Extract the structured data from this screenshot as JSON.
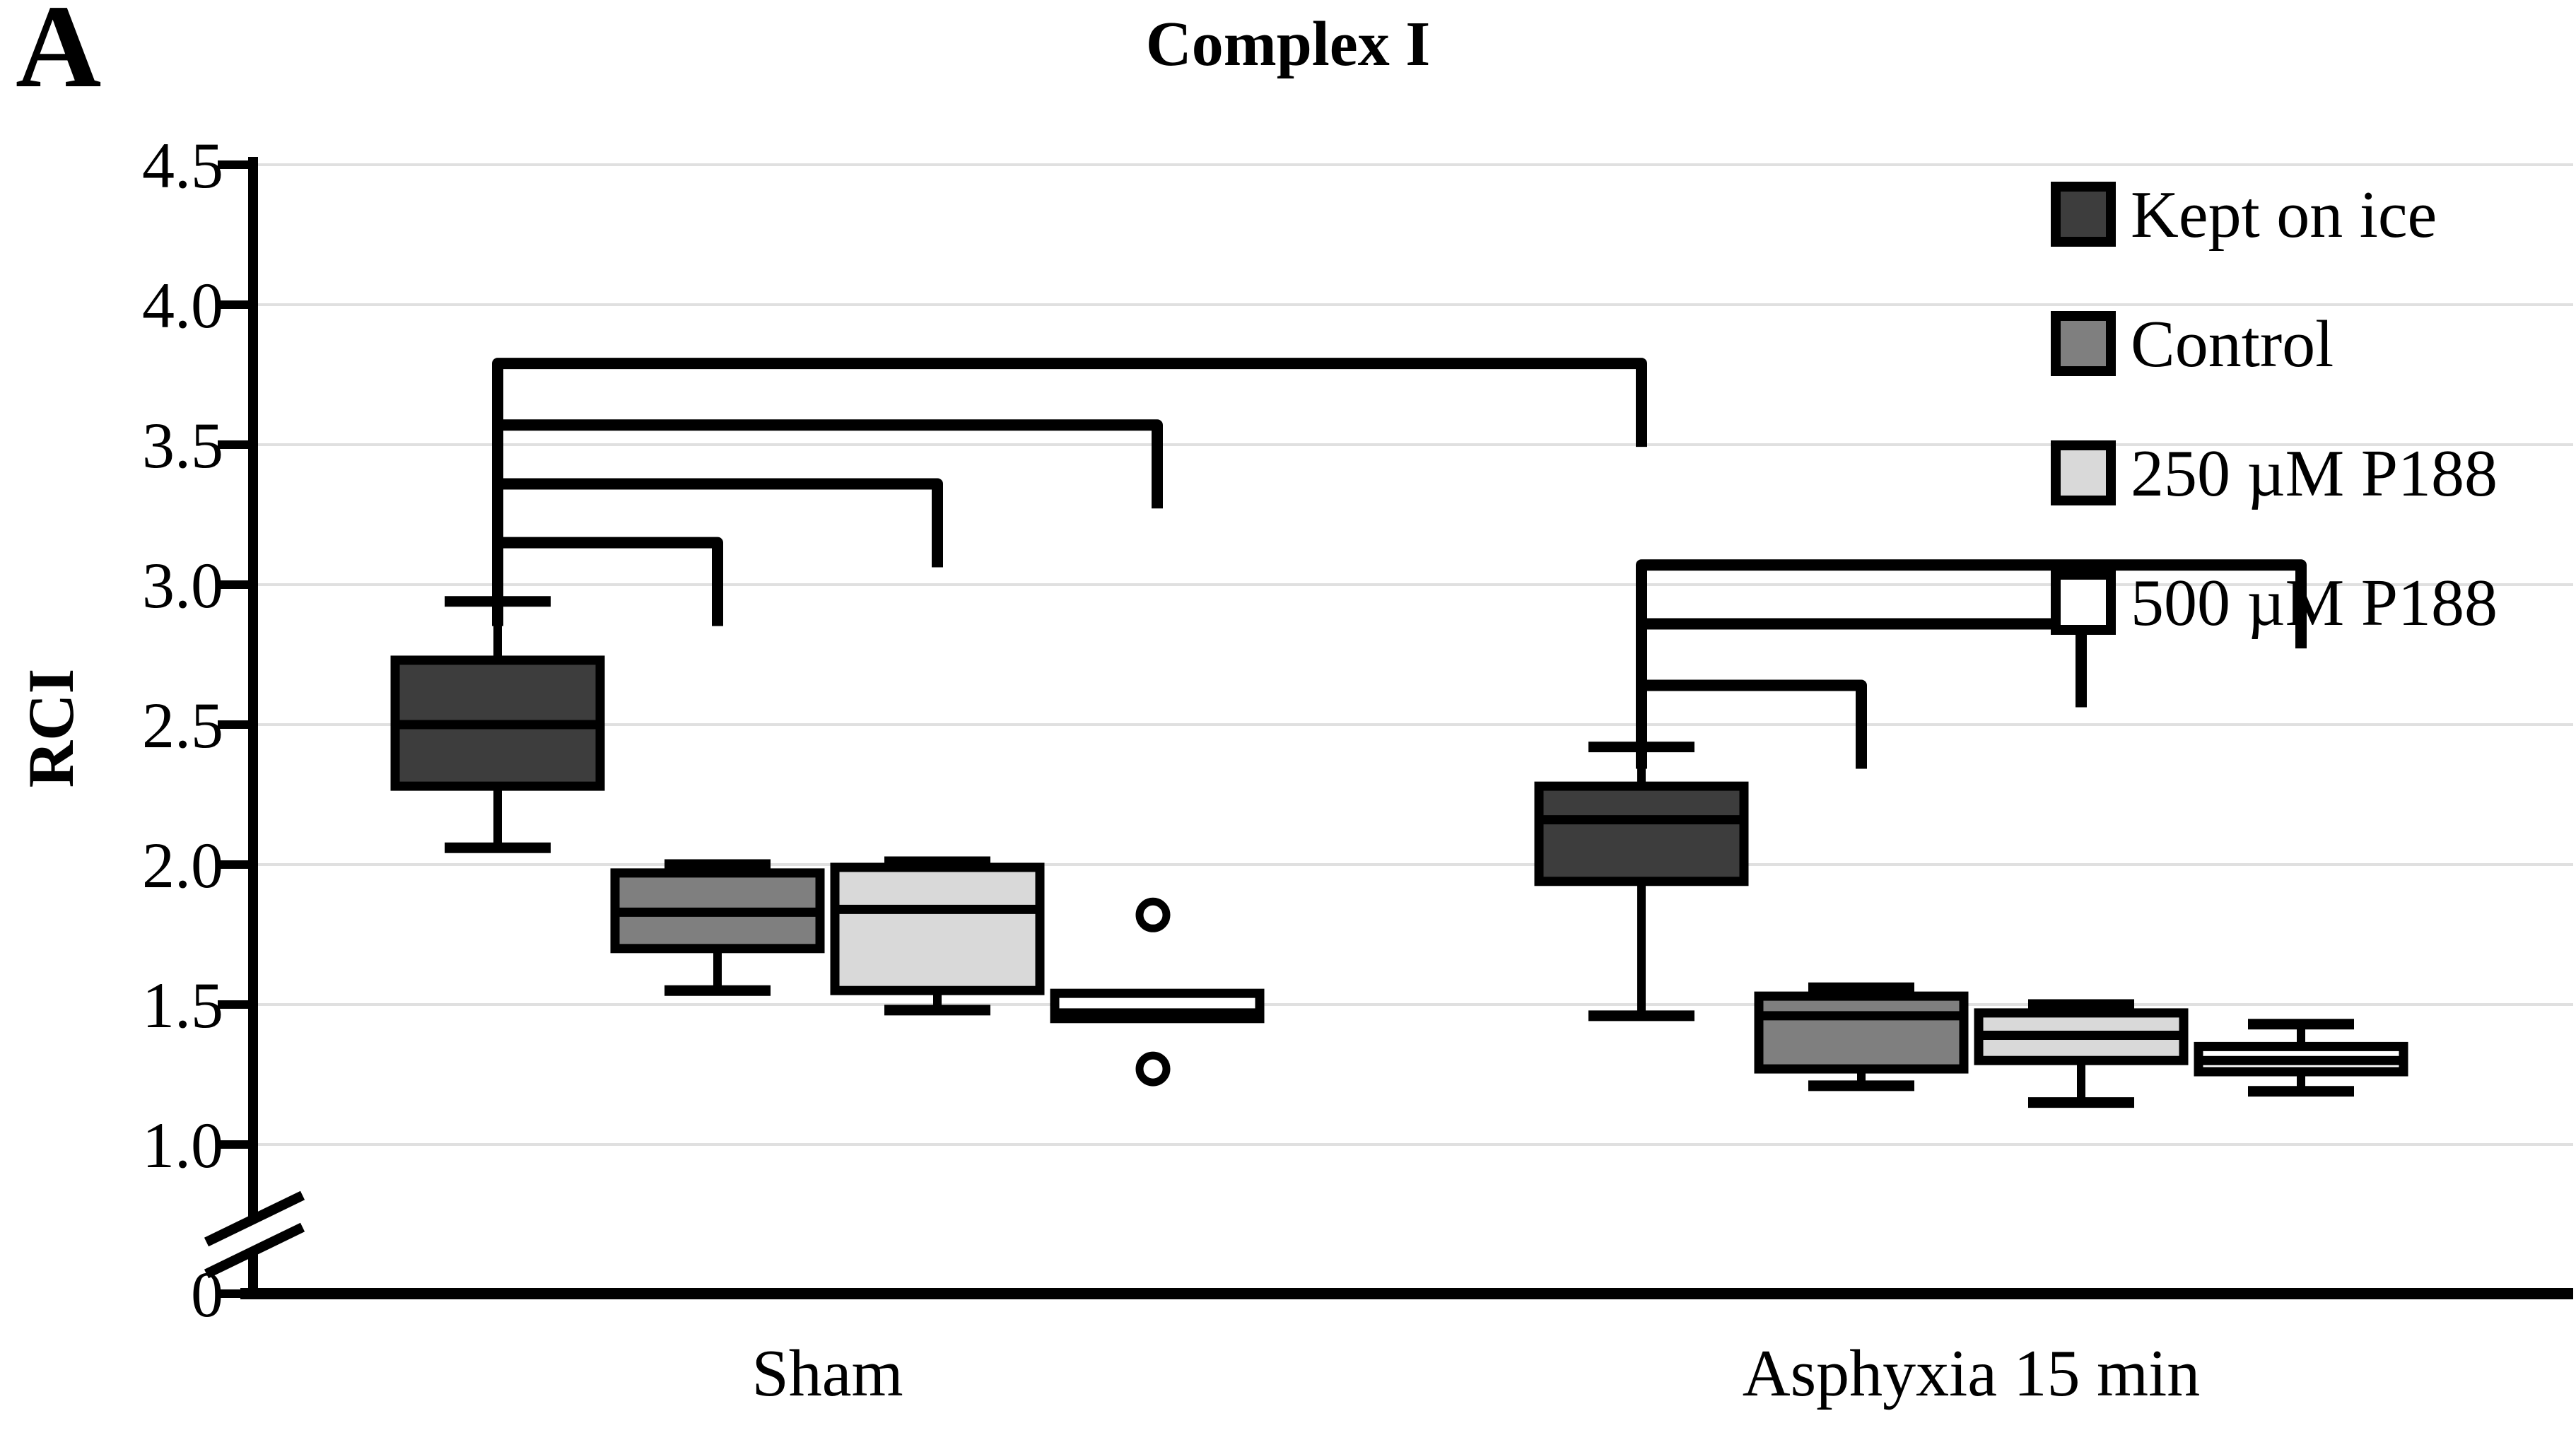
{
  "chart_data": {
    "type": "boxplot",
    "panel_label": "A",
    "title": "Complex I",
    "ylabel": "RCI",
    "groups": [
      "Sham",
      "Asphyxia 15 min"
    ],
    "series": [
      "Kept on ice",
      "Control",
      "250 µM P188",
      "500 µM P188"
    ],
    "y_axis": {
      "ticks": [
        4.5,
        4.0,
        3.5,
        3.0,
        2.5,
        2.0,
        1.5,
        1.0
      ],
      "zero_tick_label": "0",
      "axis_break_between": [
        0,
        1.0
      ],
      "grid": true
    },
    "boxes": [
      {
        "group": "Sham",
        "series": "Kept on ice",
        "whisker_low": 2.06,
        "q1": 2.28,
        "median": 2.5,
        "q3": 2.73,
        "whisker_high": 2.94,
        "outliers": []
      },
      {
        "group": "Sham",
        "series": "Control",
        "whisker_low": 1.55,
        "q1": 1.7,
        "median": 1.83,
        "q3": 1.97,
        "whisker_high": 2.0,
        "outliers": []
      },
      {
        "group": "Sham",
        "series": "250 µM P188",
        "whisker_low": 1.48,
        "q1": 1.55,
        "median": 1.84,
        "q3": 1.99,
        "whisker_high": 2.01,
        "outliers": []
      },
      {
        "group": "Sham",
        "series": "500 µM P188",
        "whisker_low": null,
        "q1": 1.45,
        "median": 1.47,
        "q3": 1.54,
        "whisker_high": null,
        "outliers": [
          1.82,
          1.27
        ]
      },
      {
        "group": "Asphyxia 15 min",
        "series": "Kept on ice",
        "whisker_low": 1.46,
        "q1": 1.94,
        "median": 2.16,
        "q3": 2.28,
        "whisker_high": 2.42,
        "outliers": []
      },
      {
        "group": "Asphyxia 15 min",
        "series": "Control",
        "whisker_low": 1.21,
        "q1": 1.27,
        "median": 1.46,
        "q3": 1.53,
        "whisker_high": 1.56,
        "outliers": []
      },
      {
        "group": "Asphyxia 15 min",
        "series": "250 µM P188",
        "whisker_low": 1.15,
        "q1": 1.3,
        "median": 1.39,
        "q3": 1.47,
        "whisker_high": 1.5,
        "outliers": []
      },
      {
        "group": "Asphyxia 15 min",
        "series": "500 µM P188",
        "whisker_low": 1.19,
        "q1": 1.26,
        "median": 1.3,
        "q3": 1.35,
        "whisker_high": 1.43,
        "outliers": []
      }
    ],
    "significance_brackets": [
      {
        "from": {
          "group": "Sham",
          "series": "Kept on ice"
        },
        "to": {
          "group": "Sham",
          "series": "Control"
        },
        "height": 3.15
      },
      {
        "from": {
          "group": "Sham",
          "series": "Kept on ice"
        },
        "to": {
          "group": "Sham",
          "series": "250 µM P188"
        },
        "height": 3.36
      },
      {
        "from": {
          "group": "Sham",
          "series": "Kept on ice"
        },
        "to": {
          "group": "Sham",
          "series": "500 µM P188"
        },
        "height": 3.57
      },
      {
        "from": {
          "group": "Sham",
          "series": "Kept on ice"
        },
        "to": {
          "group": "Asphyxia 15 min",
          "series": "Kept on ice"
        },
        "height": 3.79
      },
      {
        "from": {
          "group": "Asphyxia 15 min",
          "series": "Kept on ice"
        },
        "to": {
          "group": "Asphyxia 15 min",
          "series": "Control"
        },
        "height": 2.64
      },
      {
        "from": {
          "group": "Asphyxia 15 min",
          "series": "Kept on ice"
        },
        "to": {
          "group": "Asphyxia 15 min",
          "series": "250 µM P188"
        },
        "height": 2.86
      },
      {
        "from": {
          "group": "Asphyxia 15 min",
          "series": "Kept on ice"
        },
        "to": {
          "group": "Asphyxia 15 min",
          "series": "500 µM P188"
        },
        "height": 3.07
      }
    ],
    "legend": {
      "position": "top-right",
      "entries": [
        {
          "label": "Kept on ice",
          "color": "#3d3d3d"
        },
        {
          "label": "Control",
          "color": "#7f7f7f"
        },
        {
          "label": "250 µM P188",
          "color": "#d9d9d9"
        },
        {
          "label": "500 µM P188",
          "color": "#ffffff"
        }
      ]
    },
    "colors": {
      "axis": "#000000",
      "grid": "#e0e0e0",
      "background": "#ffffff",
      "outlier_fill": "#ffffff"
    }
  }
}
